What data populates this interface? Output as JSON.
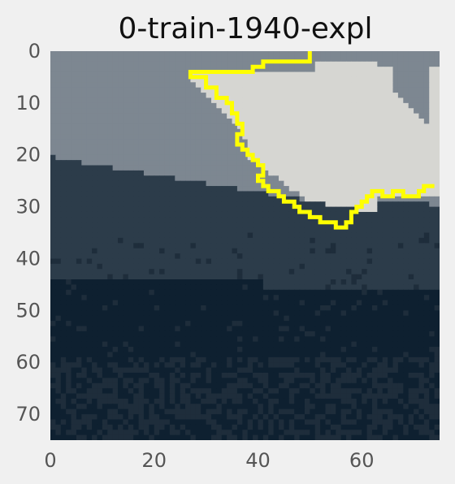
{
  "chart_data": {
    "type": "heatmap",
    "title": "0-train-1940-expl",
    "xlabel": "",
    "ylabel": "",
    "xlim": [
      0,
      74
    ],
    "ylim": [
      74,
      0
    ],
    "x_ticks": [
      "0",
      "20",
      "40",
      "60"
    ],
    "x_tick_values": [
      0,
      20,
      40,
      60
    ],
    "y_ticks": [
      "0",
      "10",
      "20",
      "30",
      "40",
      "50",
      "60",
      "70"
    ],
    "y_tick_values": [
      0,
      10,
      20,
      30,
      40,
      50,
      60,
      70
    ],
    "grid": false,
    "image_description": "grayscale-toned landscape: light sky, mountain ridge, dark valley, textured ground",
    "regions": [
      {
        "name": "sky",
        "color": "#7d8791"
      },
      {
        "name": "bright-cloud-region",
        "color": "#d6d6d2"
      },
      {
        "name": "mountains",
        "color": "#2c3c4a"
      },
      {
        "name": "dark-band",
        "color": "#0e2030"
      },
      {
        "name": "ground",
        "color": "#1e2d3b"
      }
    ],
    "explanation_outline": {
      "color": "#ffff00",
      "points": [
        [
          50,
          0
        ],
        [
          50,
          2
        ],
        [
          41,
          2
        ],
        [
          41,
          3
        ],
        [
          39,
          3
        ],
        [
          39,
          4
        ],
        [
          27,
          4
        ],
        [
          27,
          5
        ],
        [
          30,
          5
        ],
        [
          30,
          7
        ],
        [
          32,
          7
        ],
        [
          32,
          9
        ],
        [
          34,
          9
        ],
        [
          34,
          10
        ],
        [
          35,
          10
        ],
        [
          35,
          12
        ],
        [
          36,
          12
        ],
        [
          36,
          14
        ],
        [
          37,
          14
        ],
        [
          37,
          16
        ],
        [
          36,
          16
        ],
        [
          36,
          18
        ],
        [
          37,
          18
        ],
        [
          37,
          19
        ],
        [
          38,
          19
        ],
        [
          38,
          20
        ],
        [
          39,
          20
        ],
        [
          39,
          21
        ],
        [
          40,
          21
        ],
        [
          40,
          22
        ],
        [
          41,
          22
        ],
        [
          41,
          24
        ],
        [
          40,
          24
        ],
        [
          40,
          25
        ],
        [
          41,
          25
        ],
        [
          41,
          26
        ],
        [
          42,
          26
        ],
        [
          42,
          27
        ],
        [
          44,
          27
        ],
        [
          44,
          28
        ],
        [
          45,
          28
        ],
        [
          45,
          29
        ],
        [
          47,
          29
        ],
        [
          47,
          30
        ],
        [
          48,
          30
        ],
        [
          48,
          31
        ],
        [
          50,
          31
        ],
        [
          50,
          32
        ],
        [
          52,
          32
        ],
        [
          52,
          33
        ],
        [
          55,
          33
        ],
        [
          55,
          34
        ],
        [
          57,
          34
        ],
        [
          57,
          33
        ],
        [
          58,
          33
        ],
        [
          58,
          31
        ],
        [
          59,
          31
        ],
        [
          59,
          30
        ],
        [
          60,
          30
        ],
        [
          60,
          29
        ],
        [
          61,
          29
        ],
        [
          61,
          28
        ],
        [
          62,
          28
        ],
        [
          62,
          27
        ],
        [
          64,
          27
        ],
        [
          64,
          28
        ],
        [
          66,
          28
        ],
        [
          66,
          27
        ],
        [
          68,
          27
        ],
        [
          68,
          28
        ],
        [
          71,
          28
        ],
        [
          71,
          27
        ],
        [
          72,
          27
        ],
        [
          72,
          26
        ],
        [
          74,
          26
        ]
      ]
    }
  }
}
